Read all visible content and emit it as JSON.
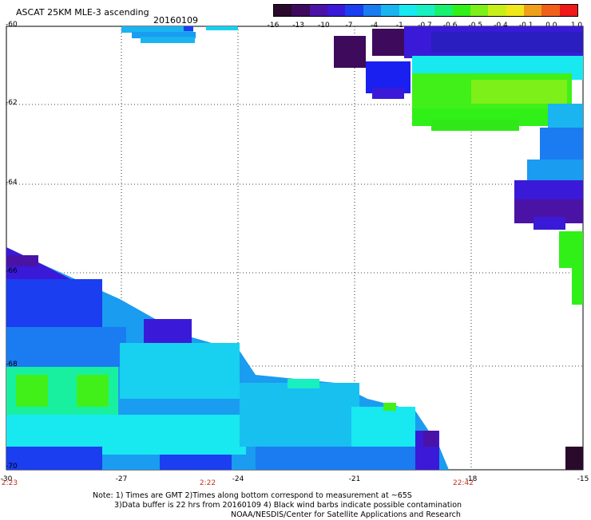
{
  "header": {
    "title": "ASCAT 25KM MLE-3 ascending",
    "date": "20160109"
  },
  "colorbar": {
    "colors": [
      "#2a0a2a",
      "#3d0a5c",
      "#4b12a6",
      "#3a1ad8",
      "#1a3ef0",
      "#1a7cf0",
      "#1ab4f0",
      "#18e8f0",
      "#18f0c0",
      "#18f070",
      "#30f018",
      "#7cf018",
      "#c8f018",
      "#f0e818",
      "#f0a018",
      "#f06018",
      "#f01818"
    ],
    "labels": [
      "-16",
      "-13",
      "-10",
      "-7",
      "-4",
      "-1",
      "-0.7",
      "-0.6",
      "-0.5",
      "-0.4",
      "-0.1",
      "0.0",
      "1.0"
    ]
  },
  "axes": {
    "lat_labels": [
      "-60",
      "-62",
      "-64",
      "-66",
      "-68",
      "-70"
    ],
    "lon_labels": [
      "-30",
      "-27",
      "-24",
      "-21",
      "-18",
      "-15"
    ],
    "time_labels": [
      "2:23",
      "2:22",
      "22:42"
    ]
  },
  "notes": {
    "line1": "Note: 1) Times are GMT 2)Times along bottom correspond to measurement at ~65S",
    "line2": "3)Data buffer is 22 hrs from 20160109 4) Black wind barbs indicate possible contamination",
    "line3": "NOAA/NESDIS/Center for Satellite Applications and Research"
  }
}
